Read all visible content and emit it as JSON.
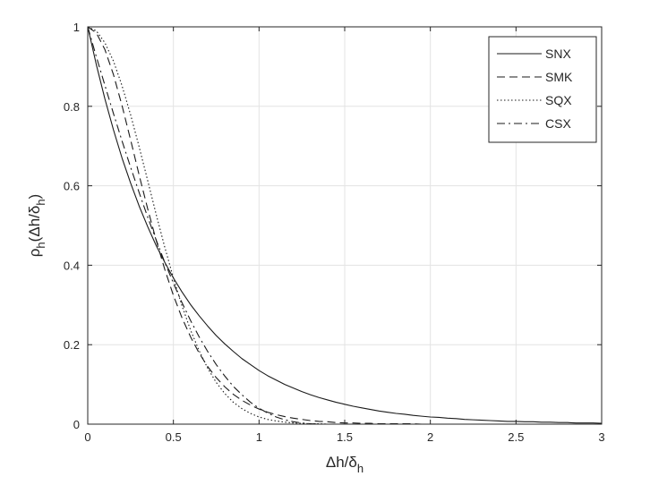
{
  "chart_data": {
    "type": "line",
    "title": "",
    "xlabel": "Δh/δ_h",
    "ylabel": "ρ_h(Δh/δ_h)",
    "xlim": [
      0,
      3
    ],
    "ylim": [
      0,
      1
    ],
    "xticks": [
      0,
      0.5,
      1,
      1.5,
      2,
      2.5,
      3
    ],
    "yticks": [
      0,
      0.2,
      0.4,
      0.6,
      0.8,
      1
    ],
    "xtick_labels": [
      "0",
      "0.5",
      "1",
      "1.5",
      "2",
      "2.5",
      "3"
    ],
    "ytick_labels": [
      "0",
      "0.2",
      "0.4",
      "0.6",
      "0.8",
      "1"
    ],
    "grid": true,
    "legend_position": "top-right",
    "x": [
      0,
      0.05,
      0.1,
      0.15,
      0.2,
      0.25,
      0.3,
      0.35,
      0.4,
      0.45,
      0.5,
      0.55,
      0.6,
      0.65,
      0.7,
      0.75,
      0.8,
      0.85,
      0.9,
      0.95,
      1,
      1.05,
      1.1,
      1.15,
      1.2,
      1.25,
      1.3,
      1.35,
      1.4,
      1.45,
      1.5,
      1.55,
      1.6,
      1.65,
      1.7,
      1.75,
      1.8,
      1.85,
      1.9,
      1.95,
      2,
      2.05,
      2.1,
      2.15,
      2.2,
      2.25,
      2.3,
      2.35,
      2.4,
      2.45,
      2.5,
      2.55,
      2.6,
      2.65,
      2.7,
      2.75,
      2.8,
      2.85,
      2.9,
      2.95,
      3
    ],
    "series": [
      {
        "name": "SNX",
        "dash": "solid",
        "values": [
          1.0,
          0.905,
          0.819,
          0.741,
          0.67,
          0.607,
          0.549,
          0.497,
          0.449,
          0.407,
          0.368,
          0.333,
          0.301,
          0.273,
          0.247,
          0.223,
          0.202,
          0.183,
          0.165,
          0.15,
          0.135,
          0.122,
          0.111,
          0.1,
          0.091,
          0.082,
          0.074,
          0.067,
          0.061,
          0.055,
          0.05,
          0.045,
          0.041,
          0.037,
          0.033,
          0.03,
          0.027,
          0.025,
          0.022,
          0.02,
          0.018,
          0.017,
          0.015,
          0.014,
          0.012,
          0.011,
          0.01,
          0.009,
          0.008,
          0.007,
          0.007,
          0.006,
          0.006,
          0.005,
          0.005,
          0.004,
          0.004,
          0.003,
          0.003,
          0.003,
          0.002
        ]
      },
      {
        "name": "SMK",
        "dash": "dashed",
        "values": [
          1.0,
          0.985,
          0.943,
          0.88,
          0.802,
          0.716,
          0.627,
          0.542,
          0.462,
          0.389,
          0.324,
          0.268,
          0.22,
          0.179,
          0.145,
          0.117,
          0.094,
          0.075,
          0.06,
          0.048,
          0.038,
          0.03,
          0.024,
          0.019,
          0.015,
          0.012,
          0.009,
          0.007,
          0.006,
          0.004,
          0.003,
          0.003,
          0.002,
          0.002,
          0.001,
          0.001,
          0.001,
          0.001,
          0.001,
          0,
          0,
          0,
          0,
          0,
          0,
          0,
          0,
          0,
          0,
          0,
          0,
          0,
          0,
          0,
          0,
          0,
          0,
          0,
          0,
          0,
          0
        ]
      },
      {
        "name": "SQX",
        "dash": "dotted",
        "values": [
          1.0,
          0.99,
          0.96,
          0.914,
          0.852,
          0.779,
          0.698,
          0.613,
          0.527,
          0.445,
          0.368,
          0.298,
          0.237,
          0.185,
          0.141,
          0.105,
          0.077,
          0.055,
          0.039,
          0.027,
          0.018,
          0.012,
          0.008,
          0.005,
          0.003,
          0.002,
          0.001,
          0.001,
          0,
          0,
          0,
          0,
          0,
          0,
          0,
          0,
          0,
          0,
          0,
          0,
          0,
          0,
          0,
          0,
          0,
          0,
          0,
          0,
          0,
          0,
          0,
          0,
          0,
          0,
          0,
          0,
          0,
          0,
          0,
          0,
          0
        ]
      },
      {
        "name": "CSX",
        "dash": "dashdot",
        "values": [
          1.0,
          0.925,
          0.853,
          0.782,
          0.713,
          0.647,
          0.583,
          0.521,
          0.463,
          0.407,
          0.355,
          0.306,
          0.261,
          0.22,
          0.183,
          0.15,
          0.121,
          0.095,
          0.074,
          0.055,
          0.04,
          0.028,
          0.018,
          0.011,
          0.006,
          0.003,
          0.001,
          0,
          0,
          0,
          0,
          0,
          0,
          0,
          0,
          0,
          0,
          0,
          0,
          0,
          0,
          0,
          0,
          0,
          0,
          0,
          0,
          0,
          0,
          0,
          0,
          0,
          0,
          0,
          0,
          0,
          0,
          0,
          0,
          0,
          0
        ]
      }
    ]
  }
}
